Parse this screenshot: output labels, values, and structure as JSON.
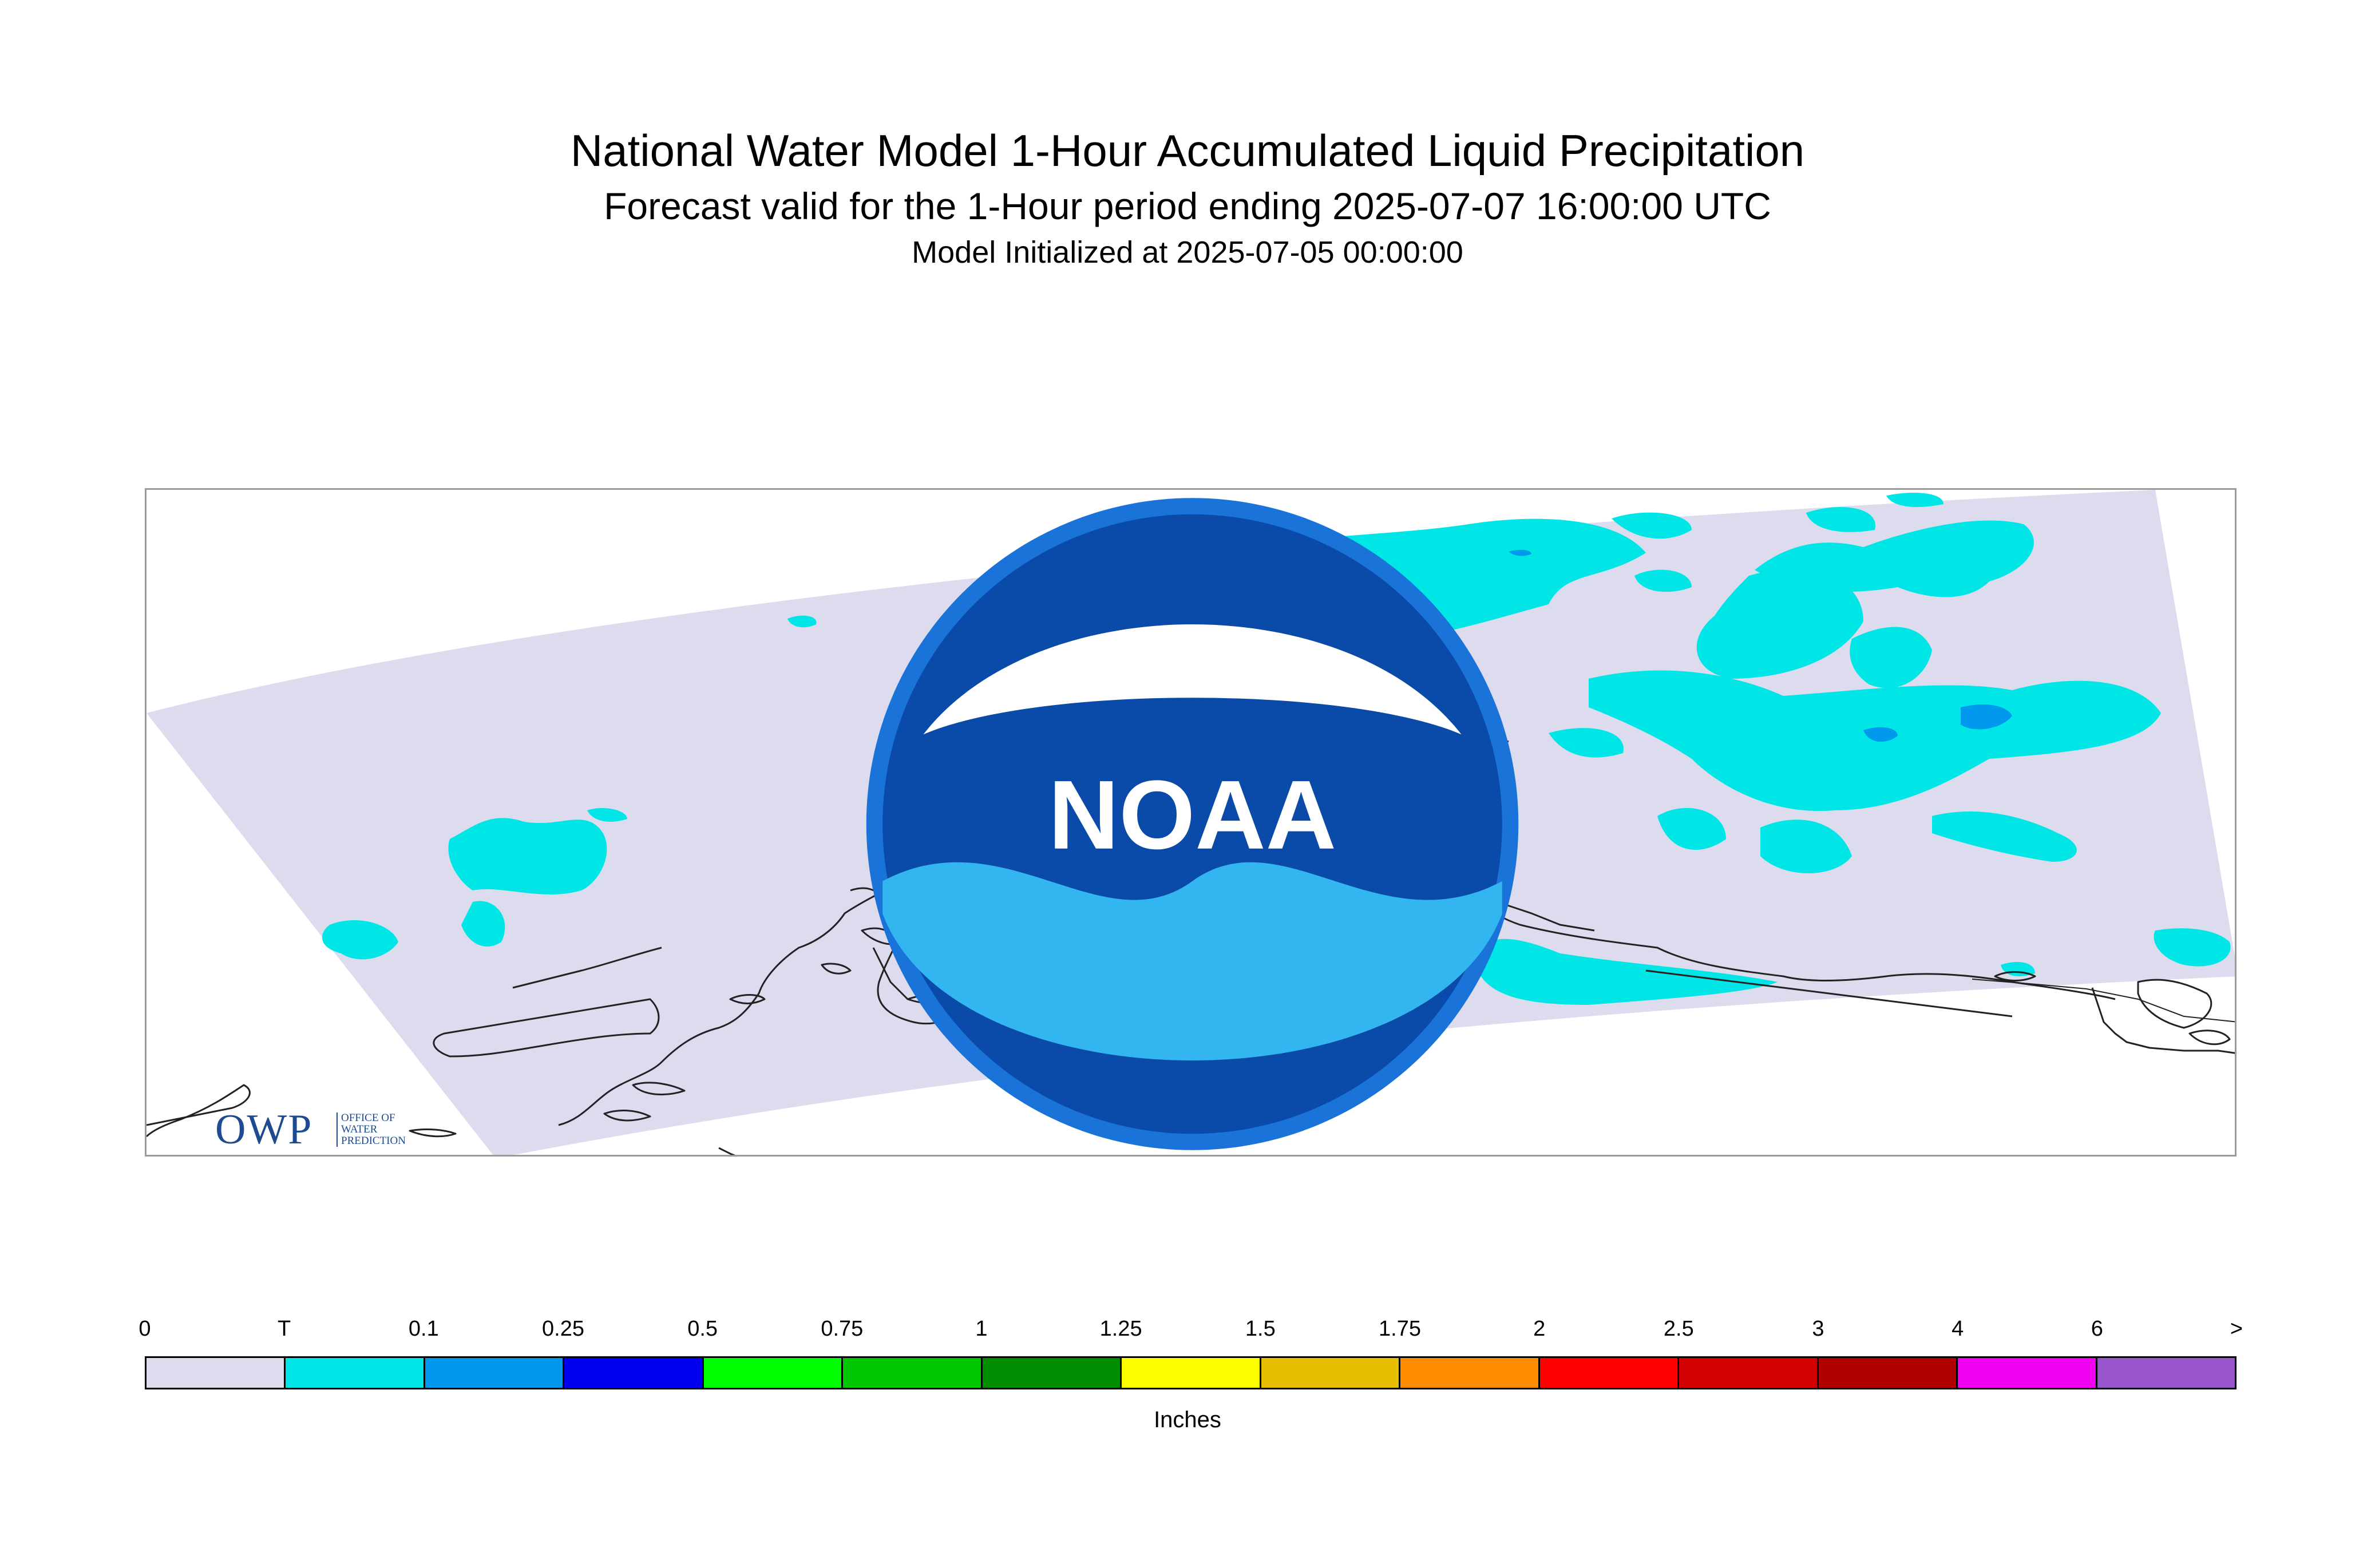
{
  "title": "National Water Model 1-Hour Accumulated Liquid Precipitation",
  "subtitle": "Forecast valid for the 1-Hour period ending 2025-07-07 16:00:00 UTC",
  "initialized": "Model Initialized at 2025-07-05 00:00:00",
  "colors": {
    "domain_background": "#dcdcee",
    "trace": "#00e6e6",
    "light": "#0099ee",
    "coastline": "#222222"
  },
  "logos": {
    "owp_mark": "OWP",
    "owp_text_1": "OFFICE OF",
    "owp_text_2": "WATER",
    "owp_text_3": "PREDICTION",
    "noaa_mark": "NOAA"
  },
  "legend": {
    "labels": [
      "0",
      "T",
      "0.1",
      "0.25",
      "0.5",
      "0.75",
      "1",
      "1.25",
      "1.5",
      "1.75",
      "2",
      "2.5",
      "3",
      "4",
      "6",
      ">"
    ],
    "colors": [
      "#dcdcee",
      "#00e6e6",
      "#0099ee",
      "#0000ee",
      "#00ff00",
      "#00c800",
      "#008c00",
      "#ffff00",
      "#e6c000",
      "#ff8c00",
      "#ff0000",
      "#d20000",
      "#b00000",
      "#f000f0",
      "#9955cc"
    ],
    "units": "Inches"
  }
}
